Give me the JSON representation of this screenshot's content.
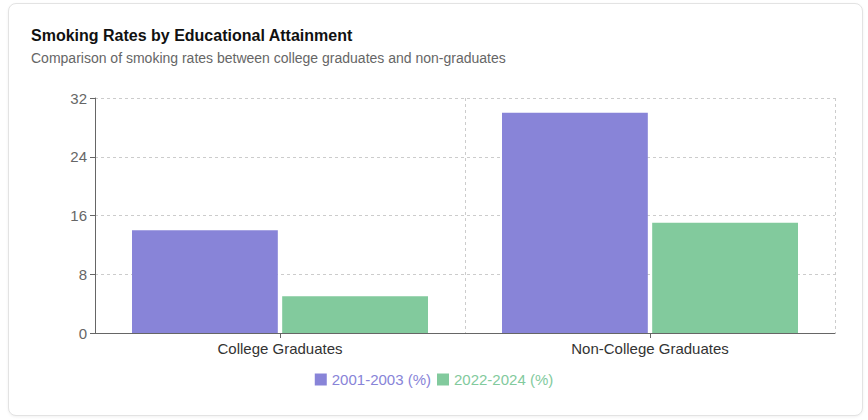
{
  "chart_data": {
    "type": "bar",
    "title": "Smoking Rates by Educational Attainment",
    "subtitle": "Comparison of smoking rates between college graduates and non-graduates",
    "categories": [
      "College Graduates",
      "Non-College Graduates"
    ],
    "series": [
      {
        "name": "2001-2003 (%)",
        "color": "#8884d8",
        "values": [
          14,
          30
        ]
      },
      {
        "name": "2022-2024 (%)",
        "color": "#82ca9d",
        "values": [
          5,
          15
        ]
      }
    ],
    "ylim": [
      0,
      32
    ],
    "yticks": [
      0,
      8,
      16,
      24,
      32
    ],
    "grid": true,
    "legend": "bottom"
  }
}
